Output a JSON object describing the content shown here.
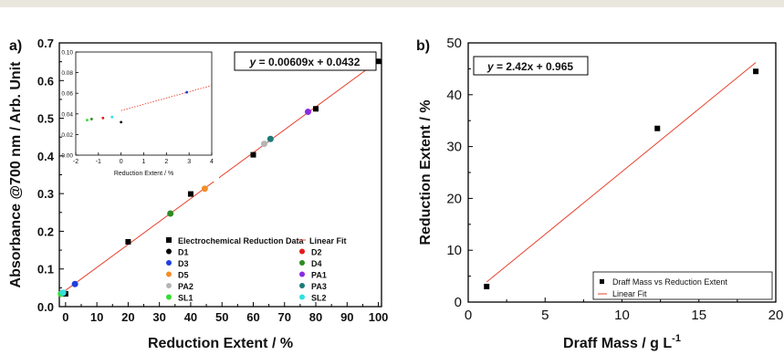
{
  "chart_data": [
    {
      "panel_label": "a)",
      "type": "scatter",
      "xlabel": "Reduction Extent / %",
      "ylabel": "Absorbance @700 nm / Arb. Unit",
      "xlim": [
        -2,
        101
      ],
      "ylim": [
        0,
        0.7
      ],
      "xticks": [
        "0",
        "10",
        "20",
        "30",
        "40",
        "50",
        "60",
        "70",
        "80",
        "90",
        "100"
      ],
      "yticks": [
        "0.0",
        "0.1",
        "0.2",
        "0.3",
        "0.4",
        "0.5",
        "0.6",
        "0.7"
      ],
      "equation": "y = 0.00609x + 0.0432",
      "fit": {
        "name": "Linear Fit",
        "slope": 0.00609,
        "intercept": 0.0432,
        "color": "#e8412c"
      },
      "legend_position": "bottom-right",
      "series": [
        {
          "name": "Electrochemical Reduction Data",
          "marker": "square",
          "color": "#000000",
          "points": [
            [
              0,
              0.034
            ],
            [
              20,
              0.172
            ],
            [
              40,
              0.299
            ],
            [
              60,
              0.403
            ],
            [
              80,
              0.525
            ],
            [
              100,
              0.651
            ]
          ]
        },
        {
          "name": "D1",
          "marker": "circle",
          "color": "#000000",
          "points": []
        },
        {
          "name": "D2",
          "marker": "circle",
          "color": "#e41a1c",
          "points": [
            [
              -1.2,
              0.035
            ]
          ]
        },
        {
          "name": "D3",
          "marker": "circle",
          "color": "#1f3fe0",
          "points": [
            [
              3,
              0.06
            ]
          ]
        },
        {
          "name": "D4",
          "marker": "circle",
          "color": "#2e8b22",
          "points": [
            [
              33.5,
              0.247
            ]
          ]
        },
        {
          "name": "D5",
          "marker": "circle",
          "color": "#f28e2b",
          "points": [
            [
              44.5,
              0.313
            ]
          ]
        },
        {
          "name": "PA1",
          "marker": "circle",
          "color": "#8a2be2",
          "points": [
            [
              77.5,
              0.517
            ]
          ]
        },
        {
          "name": "PA2",
          "marker": "circle",
          "color": "#b5b5b5",
          "points": [
            [
              63.5,
              0.432
            ]
          ]
        },
        {
          "name": "PA3",
          "marker": "circle",
          "color": "#1d7a7a",
          "points": [
            [
              65.5,
              0.445
            ]
          ]
        },
        {
          "name": "SL1",
          "marker": "circle",
          "color": "#33dd33",
          "points": [
            [
              -1.5,
              0.034
            ]
          ]
        },
        {
          "name": "SL2",
          "marker": "circle",
          "color": "#33e0e0",
          "points": [
            [
              -0.8,
              0.037
            ]
          ]
        }
      ],
      "inset": {
        "xlabel": "Reduction Extent / %",
        "xlim": [
          -2,
          4
        ],
        "ylim": [
          0,
          0.1
        ],
        "xticks": [
          "-2",
          "-1",
          "0",
          "1",
          "2",
          "3",
          "4"
        ],
        "yticks": [
          "0.00",
          "0.02",
          "0.04",
          "0.06",
          "0.08",
          "0.10"
        ],
        "points": [
          {
            "x": -1.5,
            "y": 0.034,
            "color": "#33dd33"
          },
          {
            "x": -1.3,
            "y": 0.035,
            "color": "#2e8b22"
          },
          {
            "x": -0.8,
            "y": 0.036,
            "color": "#e41a1c"
          },
          {
            "x": -0.4,
            "y": 0.037,
            "color": "#33e0e0"
          },
          {
            "x": 0.0,
            "y": 0.032,
            "color": "#000000"
          },
          {
            "x": 2.9,
            "y": 0.061,
            "color": "#1f3fe0"
          }
        ]
      }
    },
    {
      "panel_label": "b)",
      "type": "scatter",
      "xlabel": "Draff Mass / g L",
      "xlabel_superscript": "-1",
      "ylabel": "Reduction Extent / %",
      "xlim": [
        0,
        20
      ],
      "ylim": [
        0,
        50
      ],
      "xticks": [
        "0",
        "5",
        "10",
        "15",
        "20"
      ],
      "yticks": [
        "0",
        "10",
        "20",
        "30",
        "40",
        "50"
      ],
      "equation": "y = 2.42x + 0.965",
      "fit": {
        "name": "Linear Fit",
        "slope": 2.42,
        "intercept": 0.965,
        "x_range": [
          1.2,
          18.7
        ],
        "color": "#e8412c"
      },
      "legend_position": "bottom-right",
      "series": [
        {
          "name": "Draff Mass vs Reduction Extent",
          "marker": "square",
          "color": "#000000",
          "points": [
            [
              1.2,
              3.0
            ],
            [
              12.3,
              33.5
            ],
            [
              18.7,
              44.5
            ]
          ]
        }
      ]
    }
  ]
}
